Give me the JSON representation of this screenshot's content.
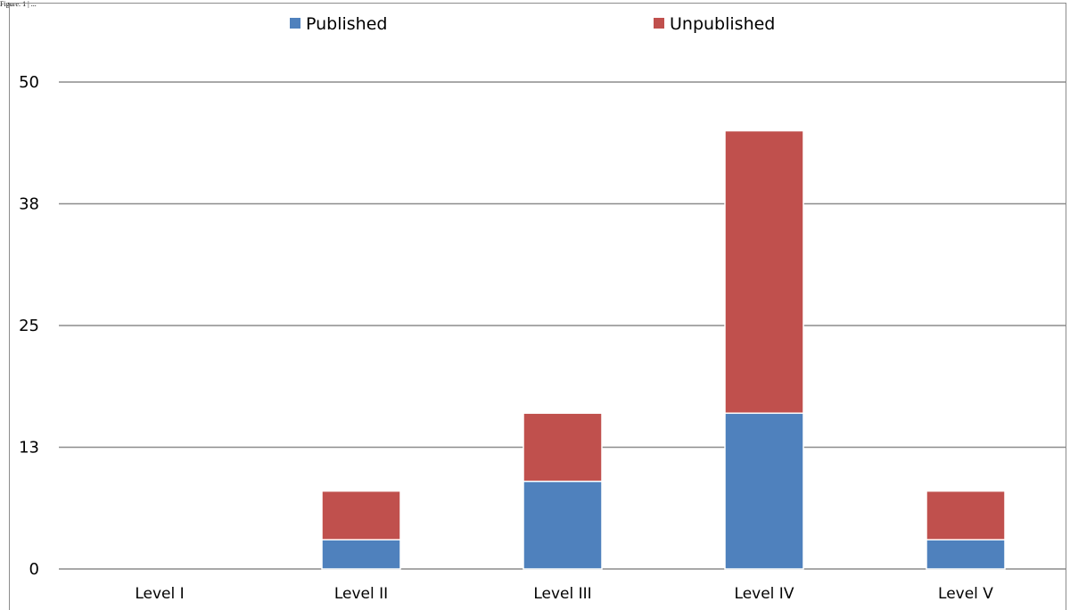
{
  "corner_label": "Figure: 1 | ...",
  "chart_data": {
    "type": "bar",
    "stacked": true,
    "categories": [
      "Level I",
      "Level II",
      "Level III",
      "Level IV",
      "Level V"
    ],
    "series": [
      {
        "name": "Published",
        "values": [
          0,
          3,
          9,
          16,
          3
        ],
        "color": "#4F81BD"
      },
      {
        "name": "Unpublished",
        "values": [
          0,
          5,
          7,
          29,
          5
        ],
        "color": "#C0504D"
      }
    ],
    "ylim": [
      0,
      50
    ],
    "yticks": [
      "0",
      "13",
      "25",
      "38",
      "50"
    ],
    "ytick_values": [
      0,
      12.5,
      25,
      37.5,
      50
    ],
    "grid": true,
    "legend_position": "top"
  }
}
